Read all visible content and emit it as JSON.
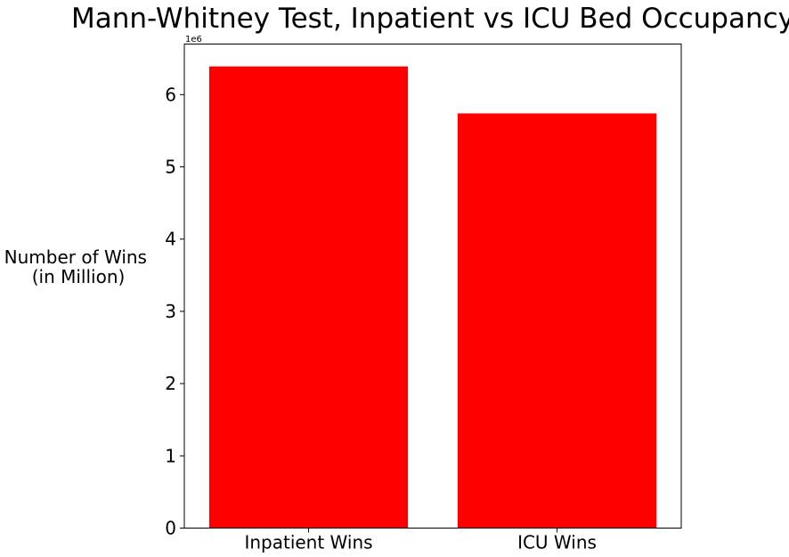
{
  "chart_data": {
    "type": "bar",
    "title": "Mann-Whitney Test, Inpatient vs ICU Bed Occupancy",
    "xlabel": "",
    "ylabel_lines": [
      "Number of Wins",
      "(in Million)"
    ],
    "y_offset_label": "1e6",
    "categories": [
      "Inpatient Wins",
      "ICU Wins"
    ],
    "values": [
      6.39,
      5.74
    ],
    "value_scale": 1000000,
    "ylim": [
      0,
      6.7
    ],
    "yticks": [
      0,
      1,
      2,
      3,
      4,
      5,
      6
    ],
    "bar_color": "#ff0000",
    "grid": false,
    "legend": "none"
  }
}
